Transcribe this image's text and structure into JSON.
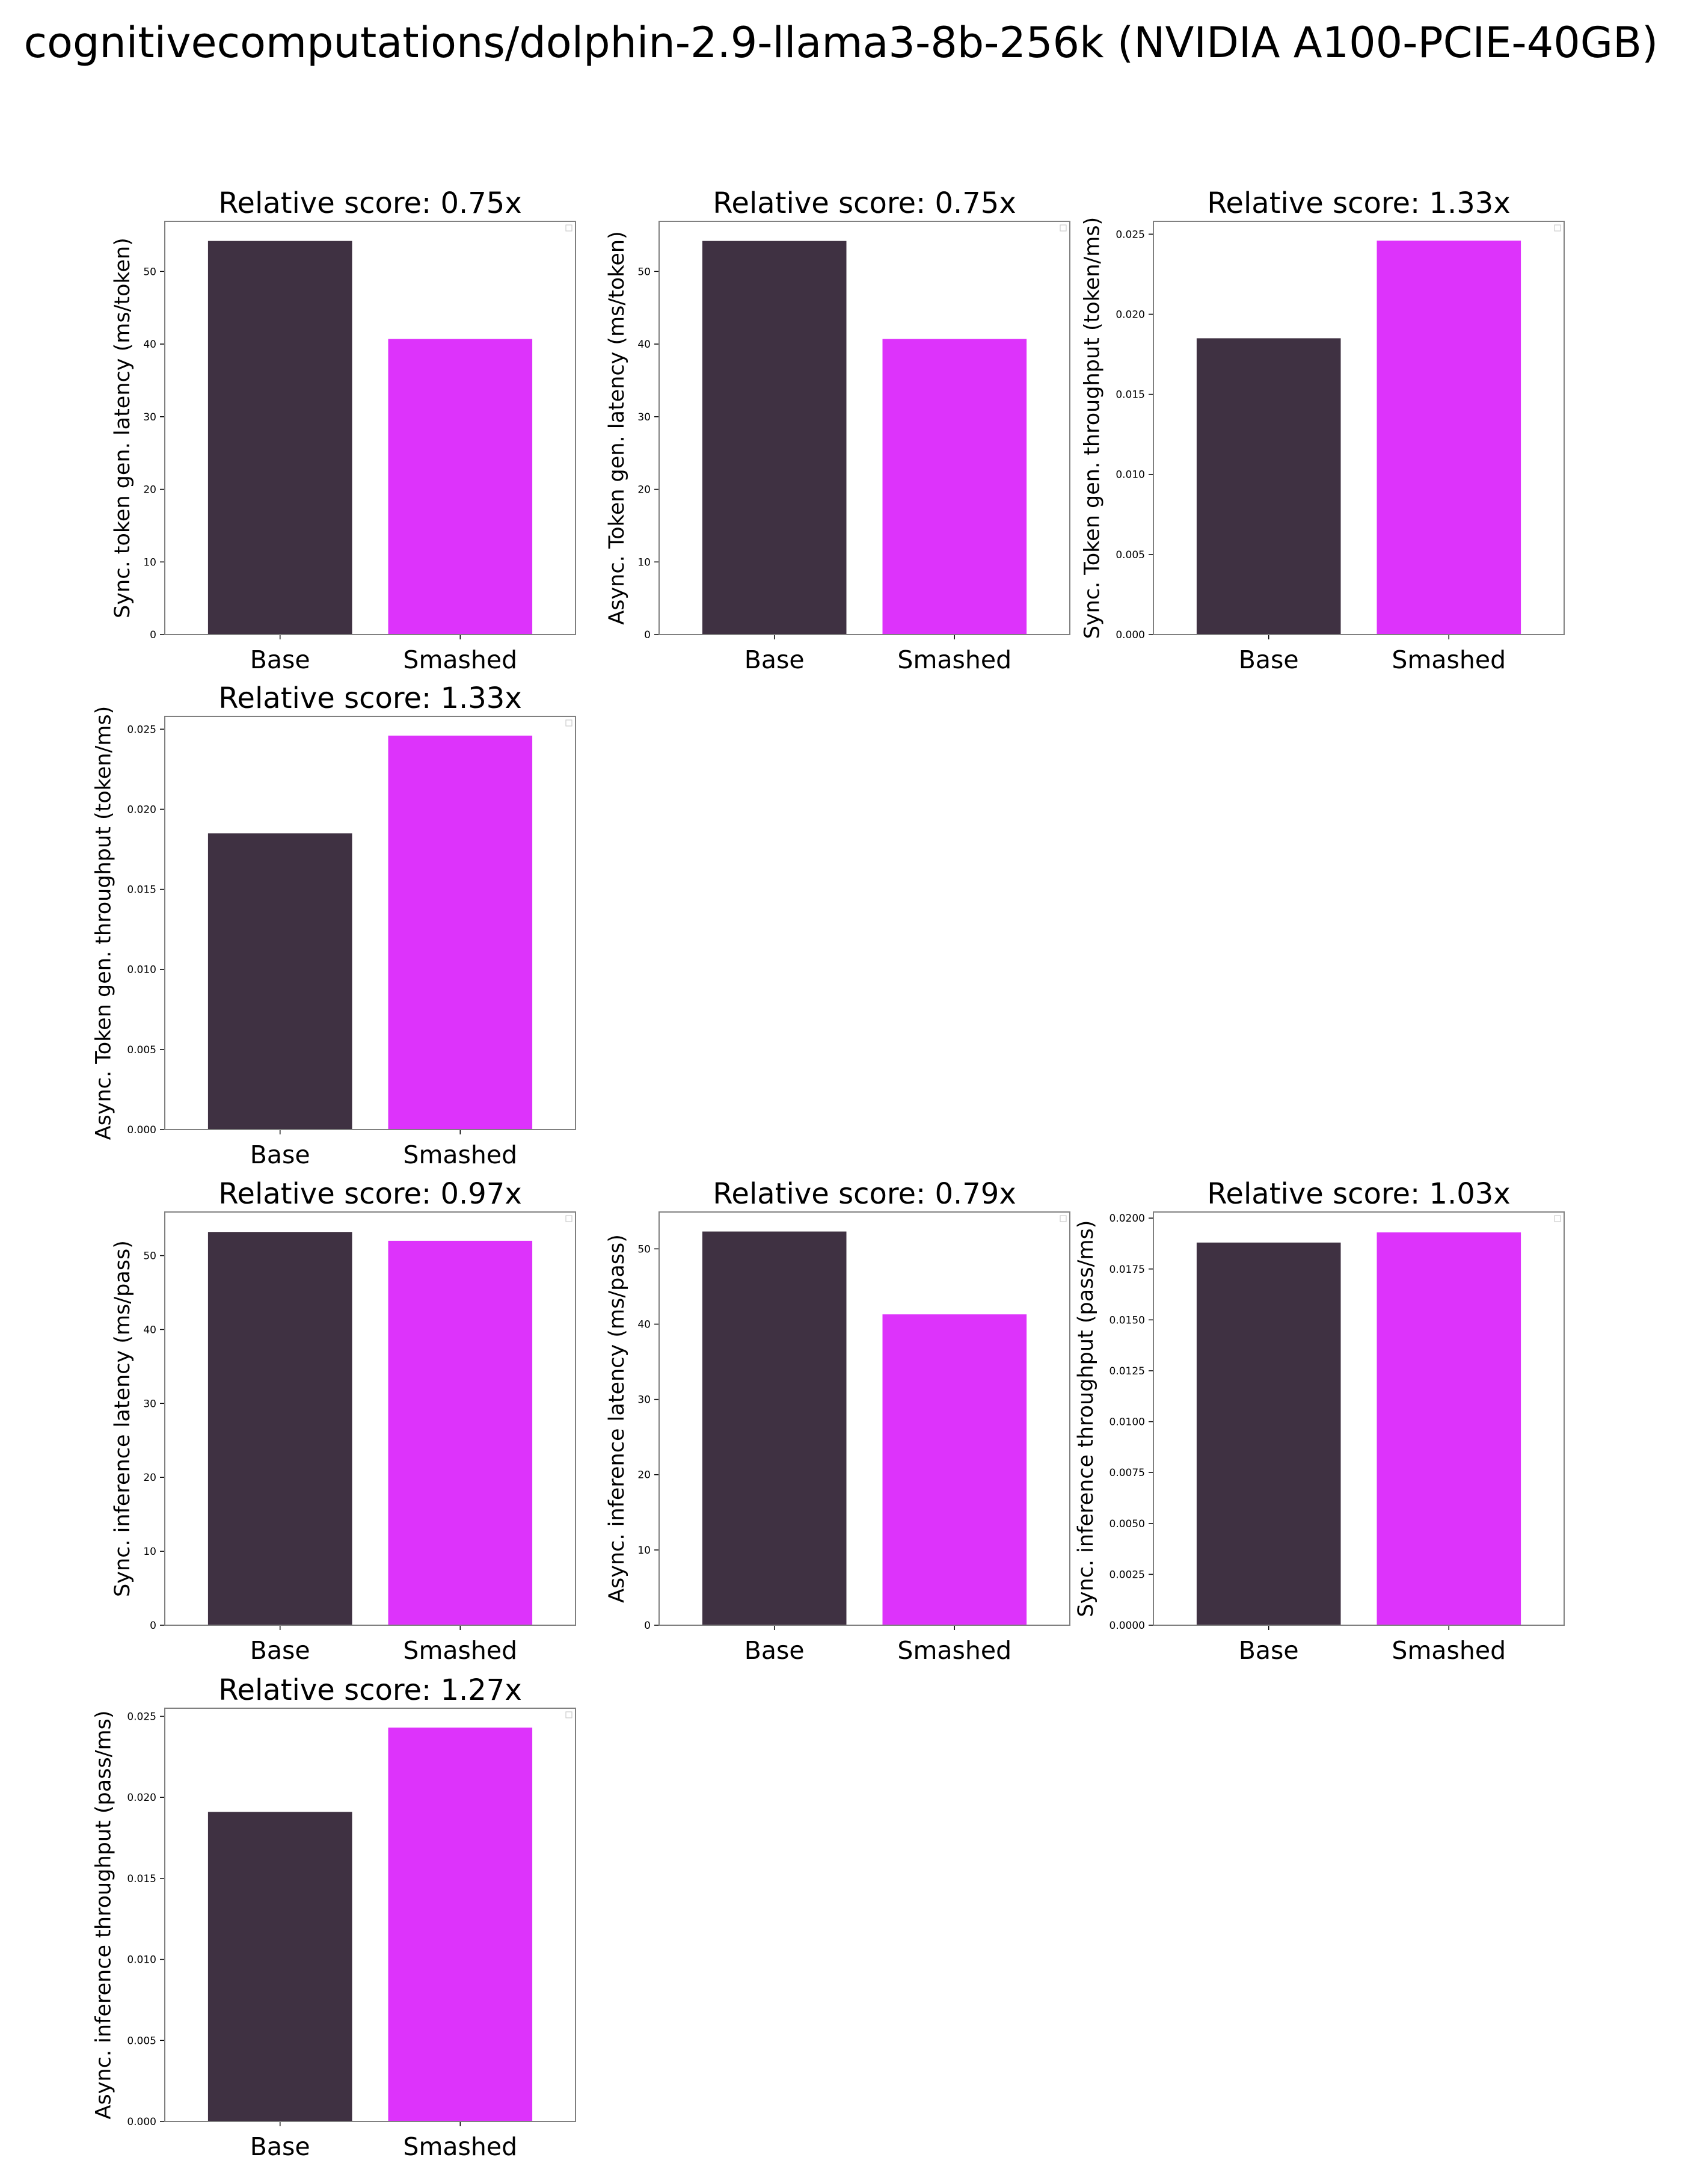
{
  "figure": {
    "title": "cognitivecomputations/dolphin-2.9-llama3-8b-256k (NVIDIA A100-PCIE-40GB)"
  },
  "colors": {
    "base": "#3f3142",
    "smashed": "#dd33fb",
    "axis": "#000000",
    "frame": "#808080",
    "background": "#ffffff"
  },
  "chart_data": [
    {
      "type": "bar",
      "title": "Relative score: 0.75x",
      "xlabel": "",
      "ylabel": "Sync. token gen. latency (ms/token)",
      "categories": [
        "Base",
        "Smashed"
      ],
      "values": [
        54.2,
        40.7
      ],
      "ylim": [
        0,
        56.9
      ],
      "yticks": [
        0,
        10,
        20,
        30,
        40,
        50
      ],
      "ytick_labels": [
        "0",
        "10",
        "20",
        "30",
        "40",
        "50"
      ],
      "grid": false
    },
    {
      "type": "bar",
      "title": "Relative score: 0.75x",
      "xlabel": "",
      "ylabel": "Async. Token gen. latency (ms/token)",
      "categories": [
        "Base",
        "Smashed"
      ],
      "values": [
        54.2,
        40.7
      ],
      "ylim": [
        0,
        56.9
      ],
      "yticks": [
        0,
        10,
        20,
        30,
        40,
        50
      ],
      "ytick_labels": [
        "0",
        "10",
        "20",
        "30",
        "40",
        "50"
      ],
      "grid": false
    },
    {
      "type": "bar",
      "title": "Relative score: 1.33x",
      "xlabel": "",
      "ylabel": "Sync. Token gen. throughput (token/ms)",
      "categories": [
        "Base",
        "Smashed"
      ],
      "values": [
        0.0185,
        0.0246
      ],
      "ylim": [
        0,
        0.0258
      ],
      "yticks": [
        0,
        0.005,
        0.01,
        0.015,
        0.02,
        0.025
      ],
      "ytick_labels": [
        "0.000",
        "0.005",
        "0.010",
        "0.015",
        "0.020",
        "0.025"
      ],
      "grid": false
    },
    {
      "type": "bar",
      "title": "Relative score: 1.33x",
      "xlabel": "",
      "ylabel": "Async. Token gen. throughput (token/ms)",
      "categories": [
        "Base",
        "Smashed"
      ],
      "values": [
        0.0185,
        0.0246
      ],
      "ylim": [
        0,
        0.0258
      ],
      "yticks": [
        0,
        0.005,
        0.01,
        0.015,
        0.02,
        0.025
      ],
      "ytick_labels": [
        "0.000",
        "0.005",
        "0.010",
        "0.015",
        "0.020",
        "0.025"
      ],
      "grid": false
    },
    {
      "type": "bar",
      "title": "Relative score: 0.97x",
      "xlabel": "",
      "ylabel": "Sync. inference latency (ms/pass)",
      "categories": [
        "Base",
        "Smashed"
      ],
      "values": [
        53.2,
        52.0
      ],
      "ylim": [
        0,
        55.9
      ],
      "yticks": [
        0,
        10,
        20,
        30,
        40,
        50
      ],
      "ytick_labels": [
        "0",
        "10",
        "20",
        "30",
        "40",
        "50"
      ],
      "grid": false
    },
    {
      "type": "bar",
      "title": "Relative score: 0.79x",
      "xlabel": "",
      "ylabel": "Async. inference latency (ms/pass)",
      "categories": [
        "Base",
        "Smashed"
      ],
      "values": [
        52.3,
        41.3
      ],
      "ylim": [
        0,
        54.9
      ],
      "yticks": [
        0,
        10,
        20,
        30,
        40,
        50
      ],
      "ytick_labels": [
        "0",
        "10",
        "20",
        "30",
        "40",
        "50"
      ],
      "grid": false
    },
    {
      "type": "bar",
      "title": "Relative score: 1.03x",
      "xlabel": "",
      "ylabel": "Sync. inference throughput (pass/ms)",
      "categories": [
        "Base",
        "Smashed"
      ],
      "values": [
        0.0188,
        0.0193
      ],
      "ylim": [
        0,
        0.0203
      ],
      "yticks": [
        0,
        0.0025,
        0.005,
        0.0075,
        0.01,
        0.0125,
        0.015,
        0.0175,
        0.02
      ],
      "ytick_labels": [
        "0.0000",
        "0.0025",
        "0.0050",
        "0.0075",
        "0.0100",
        "0.0125",
        "0.0150",
        "0.0175",
        "0.0200"
      ],
      "grid": false
    },
    {
      "type": "bar",
      "title": "Relative score: 1.27x",
      "xlabel": "",
      "ylabel": "Async. inference throughput (pass/ms)",
      "categories": [
        "Base",
        "Smashed"
      ],
      "values": [
        0.0191,
        0.0243
      ],
      "ylim": [
        0,
        0.0255
      ],
      "yticks": [
        0,
        0.005,
        0.01,
        0.015,
        0.02,
        0.025
      ],
      "ytick_labels": [
        "0.000",
        "0.005",
        "0.010",
        "0.015",
        "0.020",
        "0.025"
      ],
      "grid": false
    }
  ]
}
